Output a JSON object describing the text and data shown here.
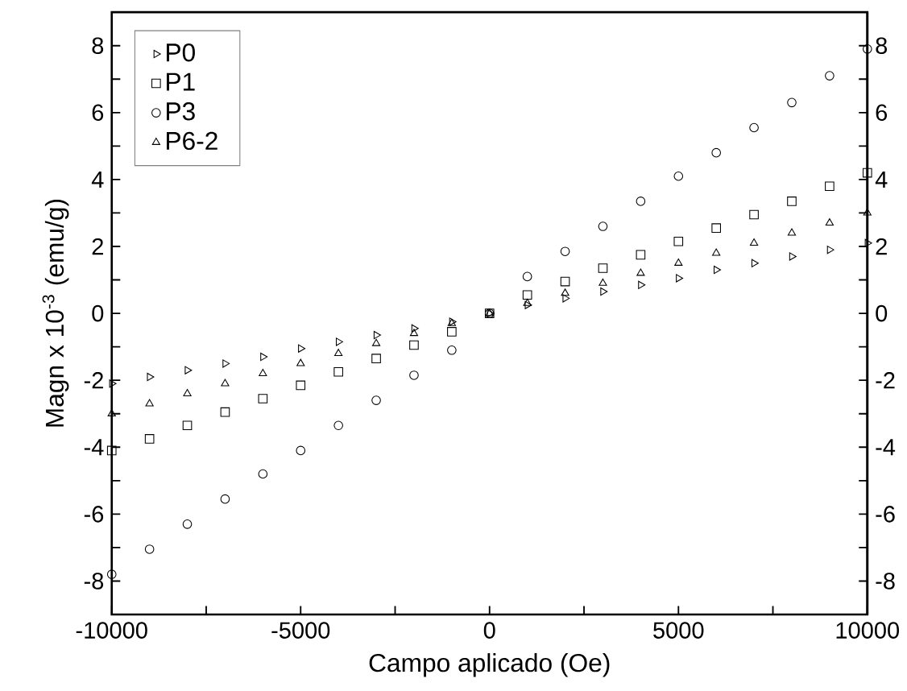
{
  "chart_data": {
    "type": "scatter",
    "xlabel": "Campo aplicado (Oe)",
    "ylabel": "Magn x 10$^{-3}$ (emu/g)",
    "x": [
      -10000,
      -9000,
      -8000,
      -7000,
      -6000,
      -5000,
      -4000,
      -3000,
      -2000,
      -1000,
      0,
      1000,
      2000,
      3000,
      4000,
      5000,
      6000,
      7000,
      8000,
      9000,
      10000
    ],
    "series": [
      {
        "name": "P0",
        "color": "#000000",
        "marker": "triangle",
        "values": [
          -2.1,
          -1.9,
          -1.7,
          -1.5,
          -1.3,
          -1.05,
          -0.85,
          -0.65,
          -0.45,
          -0.25,
          0,
          0.25,
          0.45,
          0.65,
          0.85,
          1.05,
          1.3,
          1.5,
          1.7,
          1.9,
          2.1
        ]
      },
      {
        "name": "P1",
        "color": "#000000",
        "marker": "square",
        "values": [
          -4.1,
          -3.75,
          -3.35,
          -2.95,
          -2.55,
          -2.15,
          -1.75,
          -1.35,
          -0.95,
          -0.55,
          0,
          0.55,
          0.95,
          1.35,
          1.75,
          2.15,
          2.55,
          2.95,
          3.35,
          3.8,
          4.2
        ]
      },
      {
        "name": "P3",
        "color": "#000000",
        "marker": "circle",
        "values": [
          -7.8,
          -7.05,
          -6.3,
          -5.55,
          -4.8,
          -4.1,
          -3.35,
          -2.6,
          -1.85,
          -1.1,
          0,
          1.1,
          1.85,
          2.6,
          3.35,
          4.1,
          4.8,
          5.55,
          6.3,
          7.1,
          7.9
        ]
      },
      {
        "name": "P6-2",
        "color": "#000000",
        "marker": "triangle",
        "values": [
          -3.0,
          -2.7,
          -2.4,
          -2.1,
          -1.8,
          -1.5,
          -1.2,
          -0.9,
          -0.6,
          -0.3,
          0,
          0.3,
          0.6,
          0.9,
          1.2,
          1.5,
          1.8,
          2.1,
          2.4,
          2.7,
          3.0
        ]
      }
    ],
    "xlim": [
      -10000,
      10000
    ],
    "xticks": [
      -10000,
      {
        "value": -7500,
        "label": null
      },
      -5000,
      {
        "value": -2500,
        "label": null
      },
      0,
      {
        "value": 2500,
        "label": null
      },
      5000,
      {
        "value": 7500,
        "label": null
      },
      10000
    ],
    "ylim": [
      -9,
      9
    ],
    "yticks": [
      {
        "value": -9,
        "label": null
      },
      -8,
      {
        "value": -7,
        "label": null
      },
      -6,
      {
        "value": -5,
        "label": null
      },
      -4,
      {
        "value": -3,
        "label": null
      },
      -2,
      {
        "value": -1,
        "label": null
      },
      0,
      {
        "value": 1,
        "label": null
      },
      2,
      {
        "value": 3,
        "label": null
      },
      4,
      {
        "value": 5,
        "label": null
      },
      6,
      {
        "value": 7,
        "label": null
      },
      8
    ],
    "y2lim": [
      -9,
      9
    ],
    "y2ticks": [
      {
        "value": -9,
        "label": null
      },
      -8,
      {
        "value": -7,
        "label": null
      },
      -6,
      {
        "value": -5,
        "label": null
      },
      -4,
      {
        "value": -3,
        "label": null
      },
      -2,
      {
        "value": -1,
        "label": null
      },
      0,
      {
        "value": 1,
        "label": null
      },
      2,
      {
        "value": 3,
        "label": null
      },
      4,
      {
        "value": 5,
        "label": null
      },
      6,
      {
        "value": 7,
        "label": null
      },
      8
    ],
    "legend": "top left",
    "grid": false
  }
}
